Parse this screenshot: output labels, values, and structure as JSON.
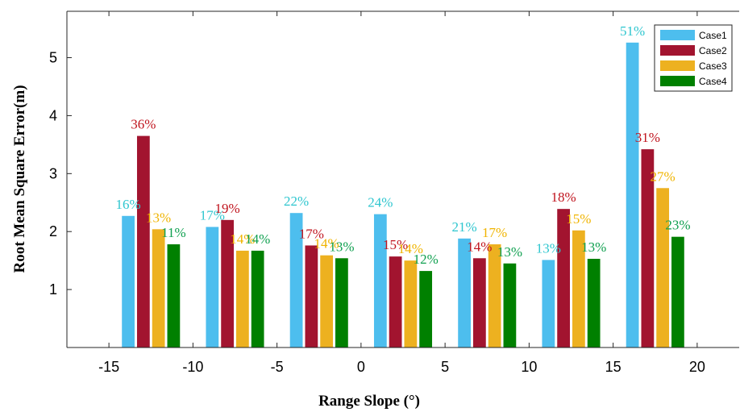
{
  "chart_data": {
    "type": "bar",
    "xlabel": "Range Slope (°)",
    "ylabel": "Root Mean Square Error(m)",
    "xlim": [
      -17.5,
      22.5
    ],
    "ylim": [
      0,
      5.8
    ],
    "x_ticks": [
      "-15",
      "-10",
      "-5",
      "0",
      "5",
      "10",
      "15",
      "20"
    ],
    "x_tick_values": [
      -15,
      -10,
      -5,
      0,
      5,
      10,
      15,
      20
    ],
    "y_ticks": [
      "1",
      "2",
      "3",
      "4",
      "5"
    ],
    "y_tick_values": [
      1,
      2,
      3,
      4,
      5
    ],
    "x": [
      -12.5,
      -7.5,
      -2.5,
      2.5,
      7.5,
      12.5,
      17.5
    ],
    "bar_group_width": 3.6,
    "legend_position": "top-right",
    "grid": false,
    "series": [
      {
        "name": "Case1",
        "color": "#4DBEEE",
        "label_color": "#2EC6CF",
        "values": [
          2.27,
          2.08,
          2.32,
          2.3,
          1.88,
          1.51,
          5.26
        ],
        "labels": [
          "16%",
          "17%",
          "22%",
          "24%",
          "21%",
          "13%",
          "51%"
        ]
      },
      {
        "name": "Case2",
        "color": "#A2142F",
        "label_color": "#C0141E",
        "values": [
          3.65,
          2.2,
          1.76,
          1.57,
          1.54,
          2.39,
          3.42
        ],
        "labels": [
          "36%",
          "19%",
          "17%",
          "15%",
          "14%",
          "18%",
          "31%"
        ]
      },
      {
        "name": "Case3",
        "color": "#EDB120",
        "label_color": "#F0B400",
        "values": [
          2.04,
          1.67,
          1.59,
          1.5,
          1.78,
          2.02,
          2.75
        ],
        "labels": [
          "13%",
          "14%",
          "14%",
          "14%",
          "17%",
          "15%",
          "27%"
        ]
      },
      {
        "name": "Case4",
        "color": "#008000",
        "label_color": "#10A050",
        "values": [
          1.78,
          1.67,
          1.54,
          1.32,
          1.45,
          1.53,
          1.91
        ],
        "labels": [
          "11%",
          "14%",
          "13%",
          "12%",
          "13%",
          "13%",
          "23%"
        ]
      }
    ]
  }
}
